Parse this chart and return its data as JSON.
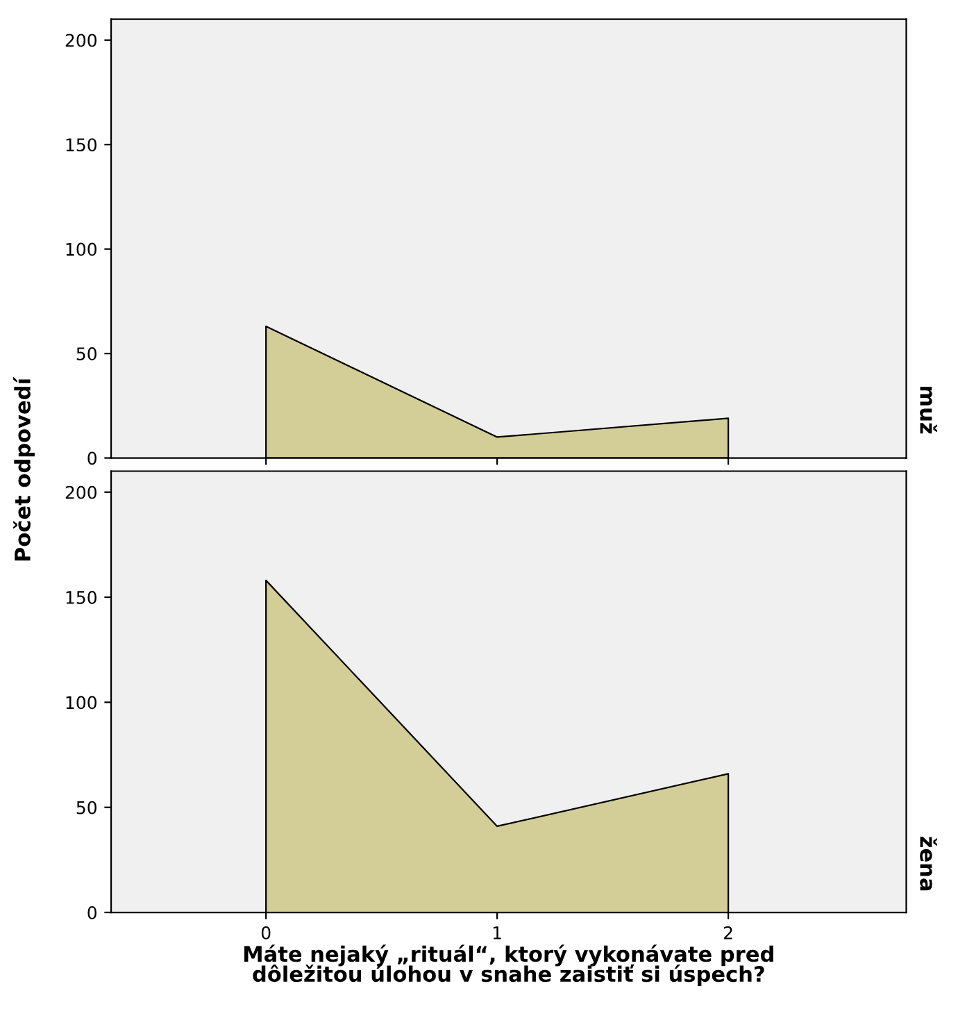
{
  "chart_data": [
    {
      "type": "area",
      "x": [
        0,
        1,
        2
      ],
      "values": [
        63,
        10,
        19
      ],
      "color": "#d3ce97",
      "xlim": [
        -0.67,
        2.77
      ],
      "xticks": [
        0,
        1,
        2
      ],
      "ylim": [
        0,
        210
      ],
      "yticks": [
        0,
        50,
        100,
        150,
        200
      ],
      "tick_labels": "y",
      "ylabel": "Počet odpovedí",
      "annotations": [
        "muž"
      ],
      "grid": false,
      "legend": false
    },
    {
      "type": "area",
      "x": [
        0,
        1,
        2
      ],
      "values": [
        158,
        41,
        66
      ],
      "color": "#d3ce97",
      "xlim": [
        -0.67,
        2.77
      ],
      "xticks": [
        0,
        1,
        2
      ],
      "ylim": [
        0,
        210
      ],
      "yticks": [
        0,
        50,
        100,
        150,
        200
      ],
      "xlabel": "Máte nejaký „rituál“, ktorý vykonávate pred\ndôležitou úlohou v snahe zaistiť si úspech?",
      "annotations": [
        "žena"
      ],
      "grid": false,
      "legend": false
    }
  ]
}
